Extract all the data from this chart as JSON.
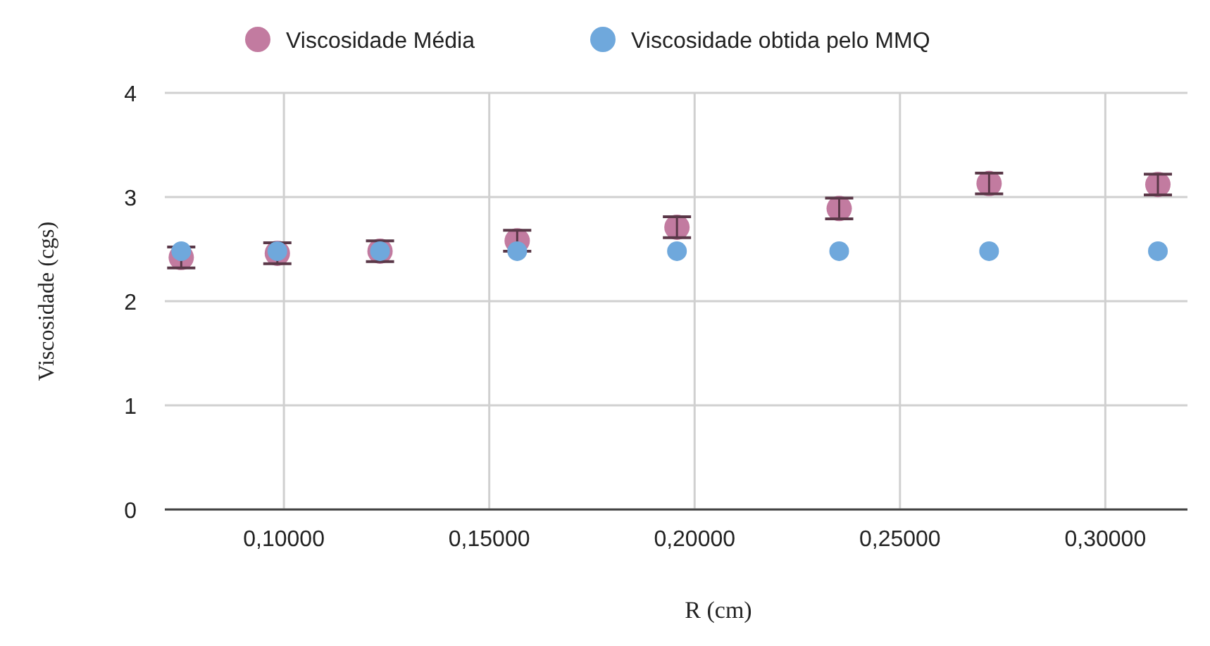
{
  "chart_data": {
    "type": "scatter",
    "xlabel": "R (cm)",
    "ylabel": "Viscosidade (cgs)",
    "xlim": [
      0.071,
      0.32
    ],
    "xticks": [
      {
        "value": 0.1,
        "label": "0,10000"
      },
      {
        "value": 0.15,
        "label": "0,15000"
      },
      {
        "value": 0.2,
        "label": "0,20000"
      },
      {
        "value": 0.25,
        "label": "0,25000"
      },
      {
        "value": 0.3,
        "label": "0,30000"
      }
    ],
    "ylim": [
      0,
      4
    ],
    "yticks": [
      0,
      1,
      2,
      3,
      4
    ],
    "grid": true,
    "legend": "top",
    "marker": "circle",
    "x": [
      0.075,
      0.0984,
      0.1234,
      0.1568,
      0.1957,
      0.2352,
      0.2717,
      0.3128
    ],
    "series": [
      {
        "name": "Viscosidade Média",
        "color": "#c27ba0",
        "values": [
          2.42,
          2.46,
          2.48,
          2.58,
          2.71,
          2.89,
          3.13,
          3.12
        ],
        "errors": [
          0.1,
          0.1,
          0.1,
          0.1,
          0.1,
          0.1,
          0.1,
          0.1
        ]
      },
      {
        "name": "Viscosidade obtida pelo MMQ",
        "color": "#6fa8dc",
        "values": [
          2.48,
          2.48,
          2.48,
          2.48,
          2.48,
          2.48,
          2.48,
          2.48
        ]
      }
    ]
  }
}
